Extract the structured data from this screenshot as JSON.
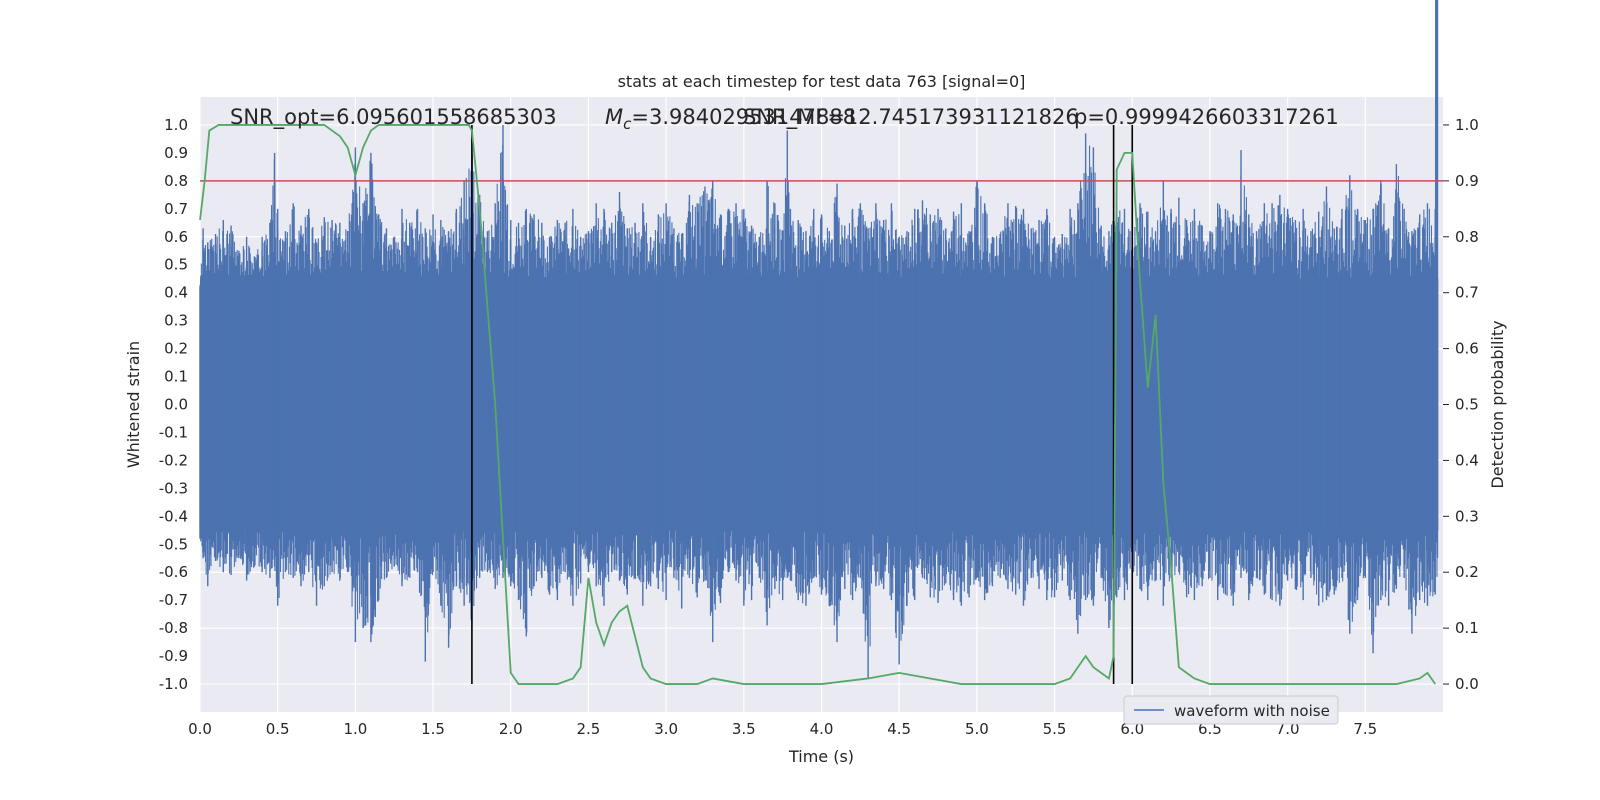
{
  "chart_data": {
    "type": "line",
    "title": "stats at each timestep for test data 763 [signal=0]",
    "xlabel": "Time (s)",
    "ylabel": "Whitened strain",
    "y2label": "Detection probability",
    "xlim": [
      0.0,
      8.0
    ],
    "ylim": [
      -1.1,
      1.1
    ],
    "y2lim": [
      -0.05,
      1.05
    ],
    "x_ticks": [
      "0.0",
      "0.5",
      "1.0",
      "1.5",
      "2.0",
      "2.5",
      "3.0",
      "3.5",
      "4.0",
      "4.5",
      "5.0",
      "5.5",
      "6.0",
      "6.5",
      "7.0",
      "7.5"
    ],
    "y_ticks": [
      "1.0",
      "0.9",
      "0.8",
      "0.7",
      "0.6",
      "0.5",
      "0.4",
      "0.3",
      "0.2",
      "0.1",
      "0.0",
      "-0.1",
      "-0.2",
      "-0.3",
      "-0.4",
      "-0.5",
      "-0.6",
      "-0.7",
      "-0.8",
      "-0.9",
      "-1.0"
    ],
    "y2_ticks": [
      "1.0",
      "0.9",
      "0.8",
      "0.7",
      "0.6",
      "0.5",
      "0.4",
      "0.3",
      "0.2",
      "0.1",
      "0.0"
    ],
    "grid": true,
    "legend_position": "lower-right",
    "annotations": {
      "snr_opt": "SNR_opt=6.095601558685303",
      "mc_prefix": "M",
      "mc_sub": "c",
      "mc_value": "=3.98402953147888",
      "snr_mf": "SNR_MF=12.745173931121826",
      "p_value": "p=0.9999426603317261"
    },
    "threshold": 0.9,
    "vertical_lines_x": [
      1.75,
      5.88,
      6.0
    ],
    "series": [
      {
        "name": "waveform with noise",
        "color": "#4c72b0",
        "envelope_top_x": [
          0.0,
          0.02,
          0.05,
          0.1,
          0.15,
          0.2,
          0.25,
          0.3,
          0.35,
          0.4,
          0.45,
          0.48,
          0.5,
          0.55,
          0.6,
          0.65,
          0.7,
          0.75,
          0.8,
          0.85,
          0.9,
          0.95,
          1.0,
          1.05,
          1.1,
          1.15,
          1.2,
          1.25,
          1.3,
          1.35,
          1.4,
          1.45,
          1.5,
          1.55,
          1.6,
          1.65,
          1.7,
          1.75,
          1.8,
          1.85,
          1.9,
          1.95,
          2.0,
          2.05,
          2.1,
          2.15,
          2.2,
          2.25,
          2.3,
          2.35,
          2.4,
          2.45,
          2.5,
          2.55,
          2.6,
          2.65,
          2.7,
          2.75,
          2.8,
          2.85,
          2.9,
          2.95,
          3.0,
          3.05,
          3.1,
          3.15,
          3.2,
          3.25,
          3.3,
          3.35,
          3.4,
          3.45,
          3.5,
          3.55,
          3.6,
          3.65,
          3.7,
          3.75,
          3.78,
          3.8,
          3.85,
          3.9,
          3.95,
          4.0,
          4.05,
          4.1,
          4.15,
          4.2,
          4.25,
          4.3,
          4.35,
          4.4,
          4.45,
          4.5,
          4.55,
          4.6,
          4.65,
          4.7,
          4.75,
          4.8,
          4.85,
          4.9,
          4.95,
          5.0,
          5.05,
          5.1,
          5.15,
          5.2,
          5.25,
          5.3,
          5.35,
          5.4,
          5.45,
          5.5,
          5.55,
          5.6,
          5.65,
          5.7,
          5.75,
          5.8,
          5.85,
          5.9,
          5.95,
          6.0,
          6.05,
          6.1,
          6.15,
          6.2,
          6.25,
          6.3,
          6.35,
          6.4,
          6.45,
          6.5,
          6.55,
          6.6,
          6.65,
          6.7,
          6.75,
          6.8,
          6.85,
          6.9,
          6.95,
          7.0,
          7.05,
          7.1,
          7.15,
          7.2,
          7.25,
          7.3,
          7.35,
          7.4,
          7.45,
          7.5,
          7.55,
          7.6,
          7.65,
          7.7,
          7.75,
          7.8,
          7.85,
          7.9,
          7.95,
          8.0
        ],
        "envelope_top_y": [
          0.42,
          0.63,
          0.58,
          0.61,
          0.66,
          0.64,
          0.55,
          0.6,
          0.53,
          0.6,
          0.65,
          0.9,
          0.7,
          0.62,
          0.72,
          0.64,
          0.7,
          0.58,
          0.67,
          0.66,
          0.65,
          0.62,
          0.92,
          0.72,
          0.9,
          0.68,
          0.63,
          0.6,
          0.7,
          0.65,
          0.7,
          0.63,
          0.68,
          0.66,
          0.62,
          0.7,
          0.8,
          0.95,
          0.75,
          0.62,
          0.72,
          1.0,
          0.66,
          0.65,
          0.7,
          0.68,
          0.65,
          0.6,
          0.66,
          0.65,
          0.7,
          0.6,
          0.62,
          0.72,
          0.7,
          0.65,
          0.76,
          0.63,
          0.65,
          0.72,
          0.6,
          0.68,
          0.72,
          0.63,
          0.61,
          0.75,
          0.72,
          0.78,
          0.8,
          0.68,
          0.7,
          0.72,
          0.7,
          0.64,
          0.6,
          0.8,
          0.72,
          0.62,
          0.98,
          0.7,
          0.66,
          0.62,
          0.7,
          0.68,
          0.62,
          0.79,
          0.64,
          0.7,
          0.72,
          0.63,
          0.72,
          0.66,
          0.72,
          0.6,
          0.62,
          0.7,
          0.73,
          0.68,
          0.7,
          0.63,
          0.69,
          0.72,
          0.62,
          0.8,
          0.72,
          0.6,
          0.61,
          0.72,
          0.71,
          0.7,
          0.63,
          0.66,
          0.7,
          0.6,
          0.61,
          0.7,
          0.72,
          0.97,
          0.92,
          0.64,
          0.62,
          0.71,
          0.7,
          0.6,
          0.72,
          0.69,
          0.62,
          0.8,
          0.7,
          0.74,
          0.66,
          0.7,
          0.64,
          0.62,
          0.72,
          0.7,
          0.68,
          0.91,
          0.68,
          0.62,
          0.72,
          0.72,
          0.75,
          0.7,
          0.66,
          0.7,
          0.62,
          0.69,
          0.78,
          0.63,
          0.7,
          0.82,
          0.7,
          0.66,
          0.7,
          0.8,
          0.63,
          0.86,
          0.7,
          0.62,
          0.68,
          0.72,
          0.7
        ],
        "envelope_bottom_y": [
          -0.48,
          -0.55,
          -0.65,
          -0.56,
          -0.6,
          -0.61,
          -0.55,
          -0.63,
          -0.58,
          -0.6,
          -0.62,
          -0.58,
          -0.72,
          -0.6,
          -0.62,
          -0.65,
          -0.6,
          -0.72,
          -0.65,
          -0.6,
          -0.63,
          -0.6,
          -0.85,
          -0.8,
          -0.85,
          -0.7,
          -0.62,
          -0.58,
          -0.65,
          -0.62,
          -0.6,
          -0.92,
          -0.6,
          -0.72,
          -0.87,
          -0.65,
          -0.72,
          -0.78,
          -0.62,
          -0.6,
          -0.66,
          -0.62,
          -0.65,
          -0.7,
          -0.83,
          -0.65,
          -0.62,
          -0.68,
          -0.7,
          -0.6,
          -0.72,
          -0.64,
          -0.6,
          -0.65,
          -0.72,
          -0.6,
          -0.63,
          -0.68,
          -0.62,
          -0.72,
          -0.65,
          -0.66,
          -0.7,
          -0.62,
          -0.73,
          -0.62,
          -0.69,
          -0.63,
          -0.85,
          -0.71,
          -0.6,
          -0.63,
          -0.72,
          -0.7,
          -0.62,
          -0.79,
          -0.66,
          -0.7,
          -0.62,
          -0.63,
          -0.7,
          -0.72,
          -0.62,
          -0.68,
          -0.72,
          -0.85,
          -0.66,
          -0.7,
          -0.62,
          -0.98,
          -0.65,
          -0.66,
          -0.7,
          -0.93,
          -0.72,
          -0.7,
          -0.62,
          -0.69,
          -0.71,
          -0.64,
          -0.7,
          -0.72,
          -0.69,
          -0.62,
          -0.7,
          -0.65,
          -0.62,
          -0.66,
          -0.68,
          -0.72,
          -0.62,
          -0.66,
          -0.7,
          -0.69,
          -0.63,
          -0.7,
          -0.82,
          -0.7,
          -0.72,
          -0.62,
          -0.8,
          -0.69,
          -0.7,
          -0.62,
          -0.66,
          -0.7,
          -0.63,
          -0.72,
          -0.62,
          -0.6,
          -0.69,
          -0.7,
          -0.65,
          -0.62,
          -0.7,
          -0.68,
          -0.72,
          -0.62,
          -0.7,
          -0.62,
          -0.68,
          -0.7,
          -0.72,
          -0.63,
          -0.66,
          -0.7,
          -0.62,
          -0.72,
          -0.7,
          -0.68,
          -0.62,
          -0.82,
          -0.7,
          -0.62,
          -0.89,
          -0.7,
          -0.72,
          -0.66,
          -0.62,
          -0.82,
          -0.7,
          -0.72,
          -0.68,
          -0.76
        ],
        "solid_band": [
          -0.45,
          0.45
        ]
      },
      {
        "name": "",
        "color": "#55a868",
        "axis": "right",
        "x": [
          0.0,
          0.03,
          0.06,
          0.12,
          0.2,
          0.3,
          0.4,
          0.5,
          0.6,
          0.7,
          0.8,
          0.85,
          0.9,
          0.95,
          1.0,
          1.05,
          1.1,
          1.15,
          1.2,
          1.3,
          1.4,
          1.5,
          1.6,
          1.7,
          1.73,
          1.75,
          1.8,
          1.9,
          2.0,
          2.05,
          2.1,
          2.2,
          2.3,
          2.4,
          2.45,
          2.5,
          2.55,
          2.6,
          2.65,
          2.7,
          2.75,
          2.85,
          2.9,
          3.0,
          3.1,
          3.2,
          3.3,
          3.5,
          3.7,
          4.0,
          4.3,
          4.5,
          4.7,
          4.9,
          5.0,
          5.3,
          5.5,
          5.6,
          5.65,
          5.7,
          5.75,
          5.8,
          5.85,
          5.88,
          5.9,
          5.95,
          6.0,
          6.05,
          6.1,
          6.15,
          6.2,
          6.25,
          6.3,
          6.35,
          6.4,
          6.5,
          6.7,
          6.9,
          7.2,
          7.5,
          7.7,
          7.85,
          7.9,
          7.95
        ],
        "y": [
          0.83,
          0.9,
          0.99,
          1.0,
          1.0,
          1.0,
          1.0,
          1.0,
          1.0,
          1.0,
          1.0,
          0.99,
          0.98,
          0.96,
          0.91,
          0.96,
          0.99,
          1.0,
          1.0,
          1.0,
          1.0,
          1.0,
          1.0,
          1.0,
          1.0,
          0.99,
          0.85,
          0.5,
          0.02,
          0.0,
          0.0,
          0.0,
          0.0,
          0.01,
          0.03,
          0.19,
          0.11,
          0.07,
          0.11,
          0.13,
          0.14,
          0.03,
          0.01,
          0.0,
          0.0,
          0.0,
          0.01,
          0.0,
          0.0,
          0.0,
          0.01,
          0.02,
          0.01,
          0.0,
          0.0,
          0.0,
          0.0,
          0.01,
          0.03,
          0.05,
          0.03,
          0.02,
          0.01,
          0.05,
          0.92,
          0.95,
          0.95,
          0.72,
          0.53,
          0.66,
          0.36,
          0.21,
          0.03,
          0.02,
          0.01,
          0.0,
          0.0,
          0.0,
          0.0,
          0.0,
          0.0,
          0.01,
          0.02,
          0.0
        ]
      }
    ]
  }
}
